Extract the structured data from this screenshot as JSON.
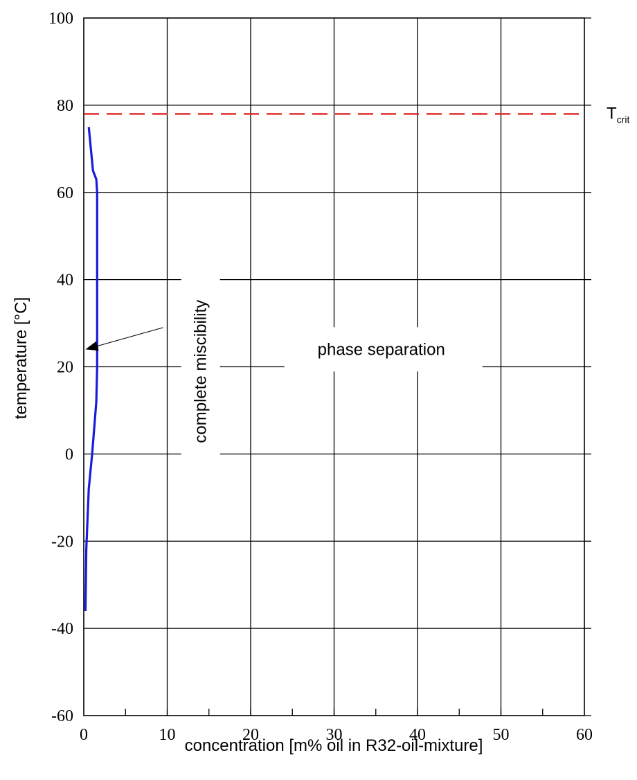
{
  "chart_data": {
    "type": "line",
    "xlabel": "concentration [m% oil in R32-oil-mixture]",
    "ylabel": "temperature [°C]",
    "xlim": [
      0,
      60
    ],
    "ylim": [
      -60,
      100
    ],
    "x_ticks": [
      "0",
      "10",
      "20",
      "30",
      "40",
      "50",
      "60"
    ],
    "y_ticks": [
      "-60",
      "-40",
      "-20",
      "0",
      "20",
      "40",
      "60",
      "80",
      "100"
    ],
    "x_minor_step": 5,
    "grid": true,
    "series": [
      {
        "color": "#1a1adb",
        "x": [
          0.2,
          0.3,
          0.6,
          1.0,
          1.5,
          1.6,
          1.6,
          1.6,
          1.6,
          1.5,
          1.1,
          0.6
        ],
        "y": [
          -36,
          -22,
          -8,
          0,
          12,
          20,
          30,
          40,
          60,
          63,
          65,
          75
        ]
      }
    ],
    "reference_line": {
      "y": 78,
      "style": "dashed",
      "color": "#e0201b",
      "label": "T",
      "label_subscript": "crit"
    },
    "annotations": [
      {
        "text": "complete miscibility",
        "x": 14,
        "y": 38,
        "orientation": "vertical"
      },
      {
        "text": "phase separation",
        "x": 35,
        "y": 24
      }
    ],
    "arrow": {
      "from": [
        9.5,
        29
      ],
      "to": [
        0.2,
        24
      ]
    }
  }
}
